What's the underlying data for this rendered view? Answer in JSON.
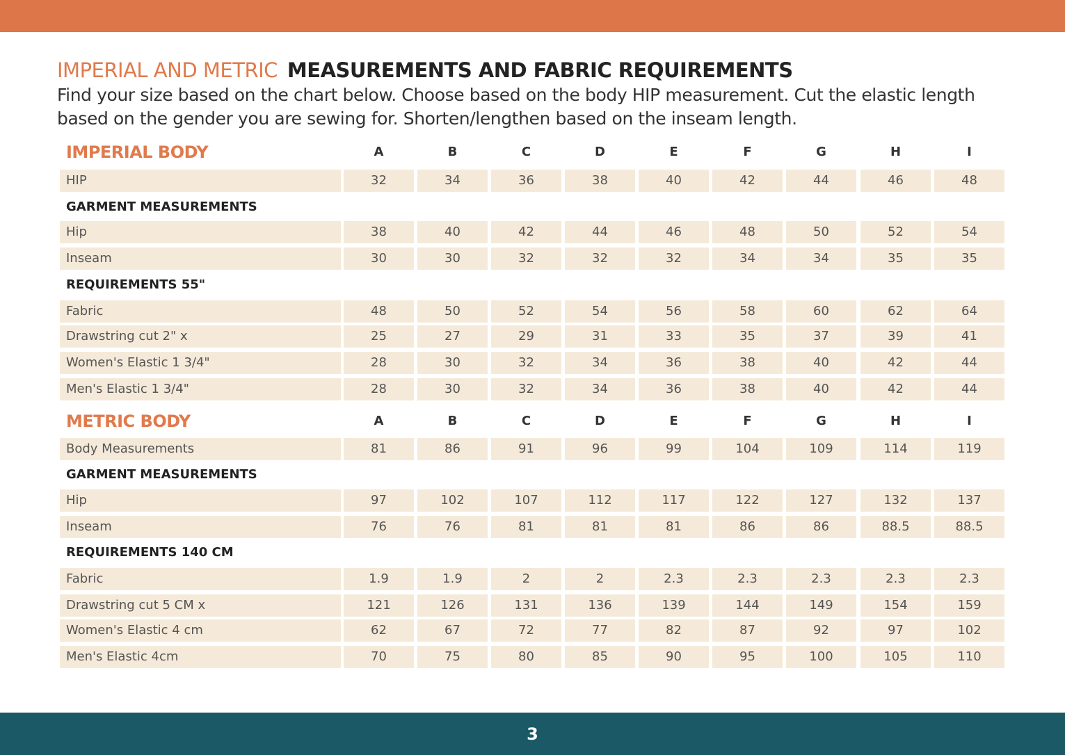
{
  "header": {
    "title_accent": "IMPERIAL AND METRIC",
    "title_main": "MEASUREMENTS AND FABRIC REQUIREMENTS",
    "intro": "Find your size based on the chart below. Choose based on the body HIP measurement. Cut the elastic length based on the gender you are sewing for. Shorten/lengthen based on the inseam length."
  },
  "colors": {
    "top_bar": "#dd7649",
    "footer": "#1b5966",
    "accent": "#e07a4c",
    "cell_bg": "#f5ead9"
  },
  "table": {
    "rows": [
      {
        "type": "head",
        "label": "IMPERIAL BODY",
        "values": [
          "A",
          "B",
          "C",
          "D",
          "E",
          "F",
          "G",
          "H",
          "I"
        ]
      },
      {
        "type": "data",
        "label": "HIP",
        "values": [
          "32",
          "34",
          "36",
          "38",
          "40",
          "42",
          "44",
          "46",
          "48"
        ]
      },
      {
        "type": "section",
        "label": "GARMENT MEASUREMENTS"
      },
      {
        "type": "data",
        "label": "Hip",
        "values": [
          "38",
          "40",
          "42",
          "44",
          "46",
          "48",
          "50",
          "52",
          "54"
        ]
      },
      {
        "type": "data",
        "label": "Inseam",
        "values": [
          "30",
          "30",
          "32",
          "32",
          "32",
          "34",
          "34",
          "35",
          "35"
        ]
      },
      {
        "type": "section",
        "label": "REQUIREMENTS 55\""
      },
      {
        "type": "data",
        "label": "Fabric",
        "values": [
          "48",
          "50",
          "52",
          "54",
          "56",
          "58",
          "60",
          "62",
          "64"
        ]
      },
      {
        "type": "data",
        "label": "Drawstring cut 2\" x",
        "values": [
          "25",
          "27",
          "29",
          "31",
          "33",
          "35",
          "37",
          "39",
          "41"
        ]
      },
      {
        "type": "data",
        "label": "Women's Elastic 1 3/4\"",
        "values": [
          "28",
          "30",
          "32",
          "34",
          "36",
          "38",
          "40",
          "42",
          "44"
        ]
      },
      {
        "type": "data",
        "label": "Men's Elastic 1 3/4\"",
        "values": [
          "28",
          "30",
          "32",
          "34",
          "36",
          "38",
          "40",
          "42",
          "44"
        ]
      },
      {
        "type": "head",
        "label": "METRIC BODY",
        "values": [
          "A",
          "B",
          "C",
          "D",
          "E",
          "F",
          "G",
          "H",
          "I"
        ]
      },
      {
        "type": "data",
        "label": "Body Measurements",
        "values": [
          "81",
          "86",
          "91",
          "96",
          "99",
          "104",
          "109",
          "114",
          "119"
        ]
      },
      {
        "type": "section",
        "label": "GARMENT MEASUREMENTS"
      },
      {
        "type": "data",
        "label": "Hip",
        "values": [
          "97",
          "102",
          "107",
          "112",
          "117",
          "122",
          "127",
          "132",
          "137"
        ]
      },
      {
        "type": "data",
        "label": "Inseam",
        "values": [
          "76",
          "76",
          "81",
          "81",
          "81",
          "86",
          "86",
          "88.5",
          "88.5"
        ]
      },
      {
        "type": "section",
        "label": "REQUIREMENTS 140 CM"
      },
      {
        "type": "data",
        "label": "Fabric",
        "values": [
          "1.9",
          "1.9",
          "2",
          "2",
          "2.3",
          "2.3",
          "2.3",
          "2.3",
          "2.3"
        ]
      },
      {
        "type": "data",
        "label": "Drawstring cut 5 CM x",
        "values": [
          "121",
          "126",
          "131",
          "136",
          "139",
          "144",
          "149",
          "154",
          "159"
        ]
      },
      {
        "type": "data",
        "label": "Women's Elastic 4 cm",
        "values": [
          "62",
          "67",
          "72",
          "77",
          "82",
          "87",
          "92",
          "97",
          "102"
        ]
      },
      {
        "type": "data",
        "label": "Men's Elastic 4cm",
        "values": [
          "70",
          "75",
          "80",
          "85",
          "90",
          "95",
          "100",
          "105",
          "110"
        ]
      }
    ]
  },
  "footer": {
    "page_number": "3"
  }
}
